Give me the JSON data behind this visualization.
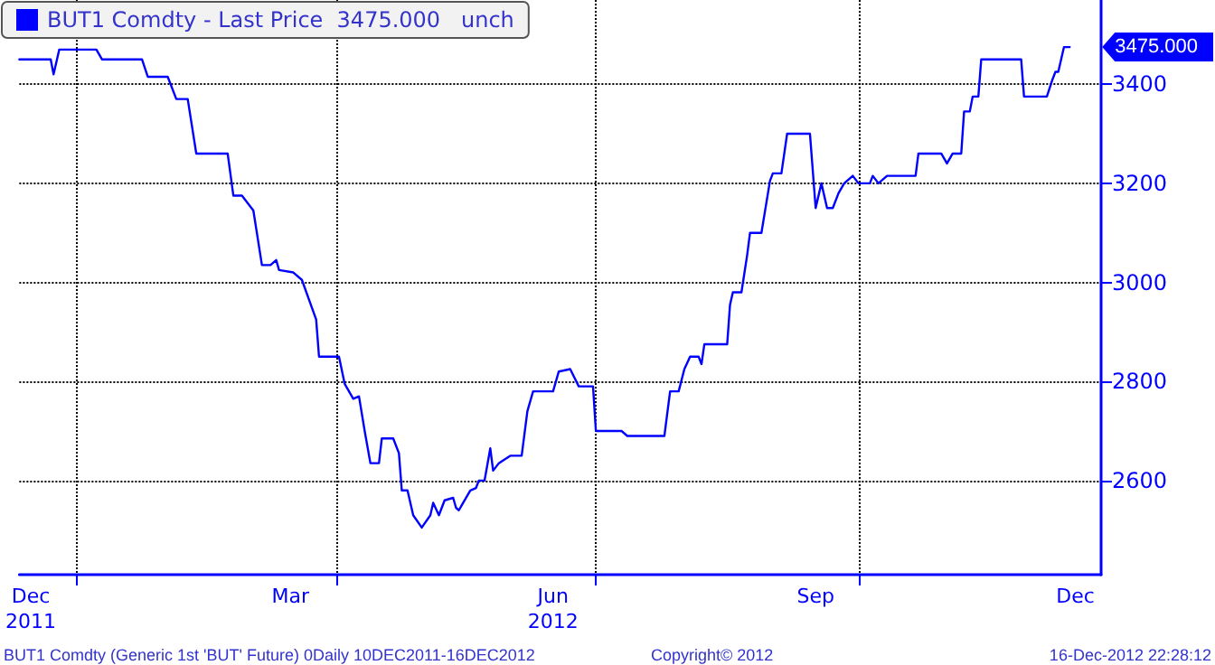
{
  "chart_data": {
    "type": "line",
    "x": [
      "2011-12-12",
      "2011-12-23",
      "2011-12-24",
      "2011-12-26",
      "2012-01-08",
      "2012-01-10",
      "2012-01-24",
      "2012-01-26",
      "2012-02-02",
      "2012-02-05",
      "2012-02-09",
      "2012-02-12",
      "2012-02-23",
      "2012-02-25",
      "2012-02-28",
      "2012-03-03",
      "2012-03-06",
      "2012-03-09",
      "2012-03-11",
      "2012-03-12",
      "2012-03-17",
      "2012-03-20",
      "2012-03-25",
      "2012-03-26",
      "2012-04-02",
      "2012-04-04",
      "2012-04-07",
      "2012-04-09",
      "2012-04-11",
      "2012-04-13",
      "2012-04-16",
      "2012-04-17",
      "2012-04-21",
      "2012-04-23",
      "2012-04-24",
      "2012-04-26",
      "2012-04-28",
      "2012-05-01",
      "2012-05-04",
      "2012-05-05",
      "2012-05-07",
      "2012-05-09",
      "2012-05-12",
      "2012-05-13",
      "2012-05-14",
      "2012-05-18",
      "2012-05-20",
      "2012-05-21",
      "2012-05-23",
      "2012-05-25",
      "2012-05-26",
      "2012-05-28",
      "2012-06-01",
      "2012-06-05",
      "2012-06-07",
      "2012-06-09",
      "2012-06-16",
      "2012-06-18",
      "2012-06-22",
      "2012-06-25",
      "2012-06-30",
      "2012-07-01",
      "2012-07-10",
      "2012-07-12",
      "2012-07-25",
      "2012-07-27",
      "2012-07-30",
      "2012-08-01",
      "2012-08-03",
      "2012-08-06",
      "2012-08-07",
      "2012-08-08",
      "2012-08-16",
      "2012-08-17",
      "2012-08-18",
      "2012-08-21",
      "2012-08-23",
      "2012-08-24",
      "2012-08-28",
      "2012-08-31",
      "2012-09-01",
      "2012-09-04",
      "2012-09-06",
      "2012-09-14",
      "2012-09-16",
      "2012-09-18",
      "2012-09-20",
      "2012-09-22",
      "2012-09-24",
      "2012-09-26",
      "2012-09-29",
      "2012-10-01",
      "2012-10-05",
      "2012-10-06",
      "2012-10-08",
      "2012-10-11",
      "2012-10-21",
      "2012-10-22",
      "2012-10-30",
      "2012-11-01",
      "2012-11-03",
      "2012-11-06",
      "2012-11-07",
      "2012-11-09",
      "2012-11-10",
      "2012-11-12",
      "2012-11-13",
      "2012-11-27",
      "2012-11-28",
      "2012-12-06",
      "2012-12-08",
      "2012-12-09",
      "2012-12-10",
      "2012-12-12",
      "2012-12-14"
    ],
    "series": [
      {
        "name": "BUT1 Comdty - Last Price  3475.000   unch",
        "color": "#0000ff",
        "values": [
          3450,
          3450,
          3420,
          3470,
          3470,
          3450,
          3450,
          3415,
          3415,
          3370,
          3370,
          3260,
          3260,
          3175,
          3175,
          3145,
          3035,
          3035,
          3045,
          3025,
          3020,
          3005,
          2925,
          2850,
          2850,
          2795,
          2765,
          2770,
          2700,
          2635,
          2635,
          2685,
          2685,
          2655,
          2580,
          2580,
          2530,
          2505,
          2530,
          2555,
          2530,
          2560,
          2565,
          2545,
          2540,
          2580,
          2585,
          2600,
          2600,
          2665,
          2620,
          2635,
          2650,
          2650,
          2740,
          2780,
          2780,
          2820,
          2825,
          2790,
          2790,
          2700,
          2700,
          2690,
          2690,
          2780,
          2780,
          2825,
          2850,
          2850,
          2835,
          2875,
          2875,
          2955,
          2980,
          2980,
          3055,
          3100,
          3100,
          3205,
          3220,
          3220,
          3300,
          3300,
          3150,
          3200,
          3150,
          3150,
          3180,
          3200,
          3215,
          3200,
          3200,
          3215,
          3200,
          3215,
          3215,
          3260,
          3260,
          3240,
          3260,
          3260,
          3345,
          3345,
          3375,
          3375,
          3450,
          3450,
          3375,
          3375,
          3410,
          3425,
          3425,
          3475,
          3475
        ]
      }
    ],
    "xlim": [
      "2011-12-12",
      "2012-12-25"
    ],
    "xticks": [
      {
        "value": "2012-01-01",
        "label": null
      },
      {
        "value": "2012-04-01",
        "label": null
      },
      {
        "value": "2012-07-01",
        "label": null
      },
      {
        "value": "2012-10-01",
        "label": null
      },
      {
        "value": "2011-12-16",
        "label": "Dec\n2011"
      },
      {
        "value": "2012-03-16",
        "label": "Mar"
      },
      {
        "value": "2012-06-16",
        "label": "Jun\n2012"
      },
      {
        "value": "2012-09-16",
        "label": "Sep"
      },
      {
        "value": "2012-12-16",
        "label": "Dec"
      }
    ],
    "ylim": [
      2410,
      3570
    ],
    "yticks": [
      2600,
      2800,
      3000,
      3200,
      3400
    ],
    "grid": true,
    "legend": "top left",
    "marker": "none",
    "line_style": "solid",
    "annotations": [
      {
        "text": "3475.000",
        "x": "2012-12-14",
        "y": 3475
      },
      "BUT1 Comdty (Generic 1st 'BUT' Future) 0Daily 10DEC2011-16DEC2012",
      "Copyright© 2012",
      "16-Dec-2012 22:28:12"
    ]
  }
}
